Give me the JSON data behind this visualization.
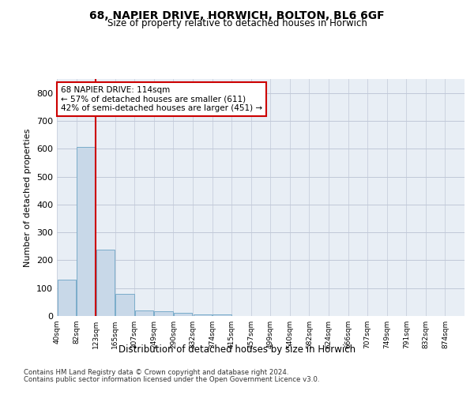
{
  "title_line1": "68, NAPIER DRIVE, HORWICH, BOLTON, BL6 6GF",
  "title_line2": "Size of property relative to detached houses in Horwich",
  "xlabel": "Distribution of detached houses by size in Horwich",
  "ylabel": "Number of detached properties",
  "footer_line1": "Contains HM Land Registry data © Crown copyright and database right 2024.",
  "footer_line2": "Contains public sector information licensed under the Open Government Licence v3.0.",
  "annotation_line1": "68 NAPIER DRIVE: 114sqm",
  "annotation_line2": "← 57% of detached houses are smaller (611)",
  "annotation_line3": "42% of semi-detached houses are larger (451) →",
  "bin_labels": [
    "40sqm",
    "82sqm",
    "123sqm",
    "165sqm",
    "207sqm",
    "249sqm",
    "290sqm",
    "332sqm",
    "374sqm",
    "415sqm",
    "457sqm",
    "499sqm",
    "540sqm",
    "582sqm",
    "624sqm",
    "666sqm",
    "707sqm",
    "749sqm",
    "791sqm",
    "832sqm",
    "874sqm"
  ],
  "bar_values": [
    130,
    605,
    237,
    80,
    20,
    18,
    10,
    6,
    7,
    0,
    0,
    0,
    0,
    0,
    0,
    0,
    0,
    0,
    0,
    0,
    0
  ],
  "bar_color": "#c8d8e8",
  "bar_edge_color": "#7aacca",
  "property_line_x": 1.5,
  "property_line_color": "#cc0000",
  "annotation_box_color": "#cc0000",
  "ylim": [
    0,
    850
  ],
  "yticks": [
    0,
    100,
    200,
    300,
    400,
    500,
    600,
    700,
    800
  ],
  "background_color": "#e8eef5",
  "grid_color": "#c0c8d8"
}
